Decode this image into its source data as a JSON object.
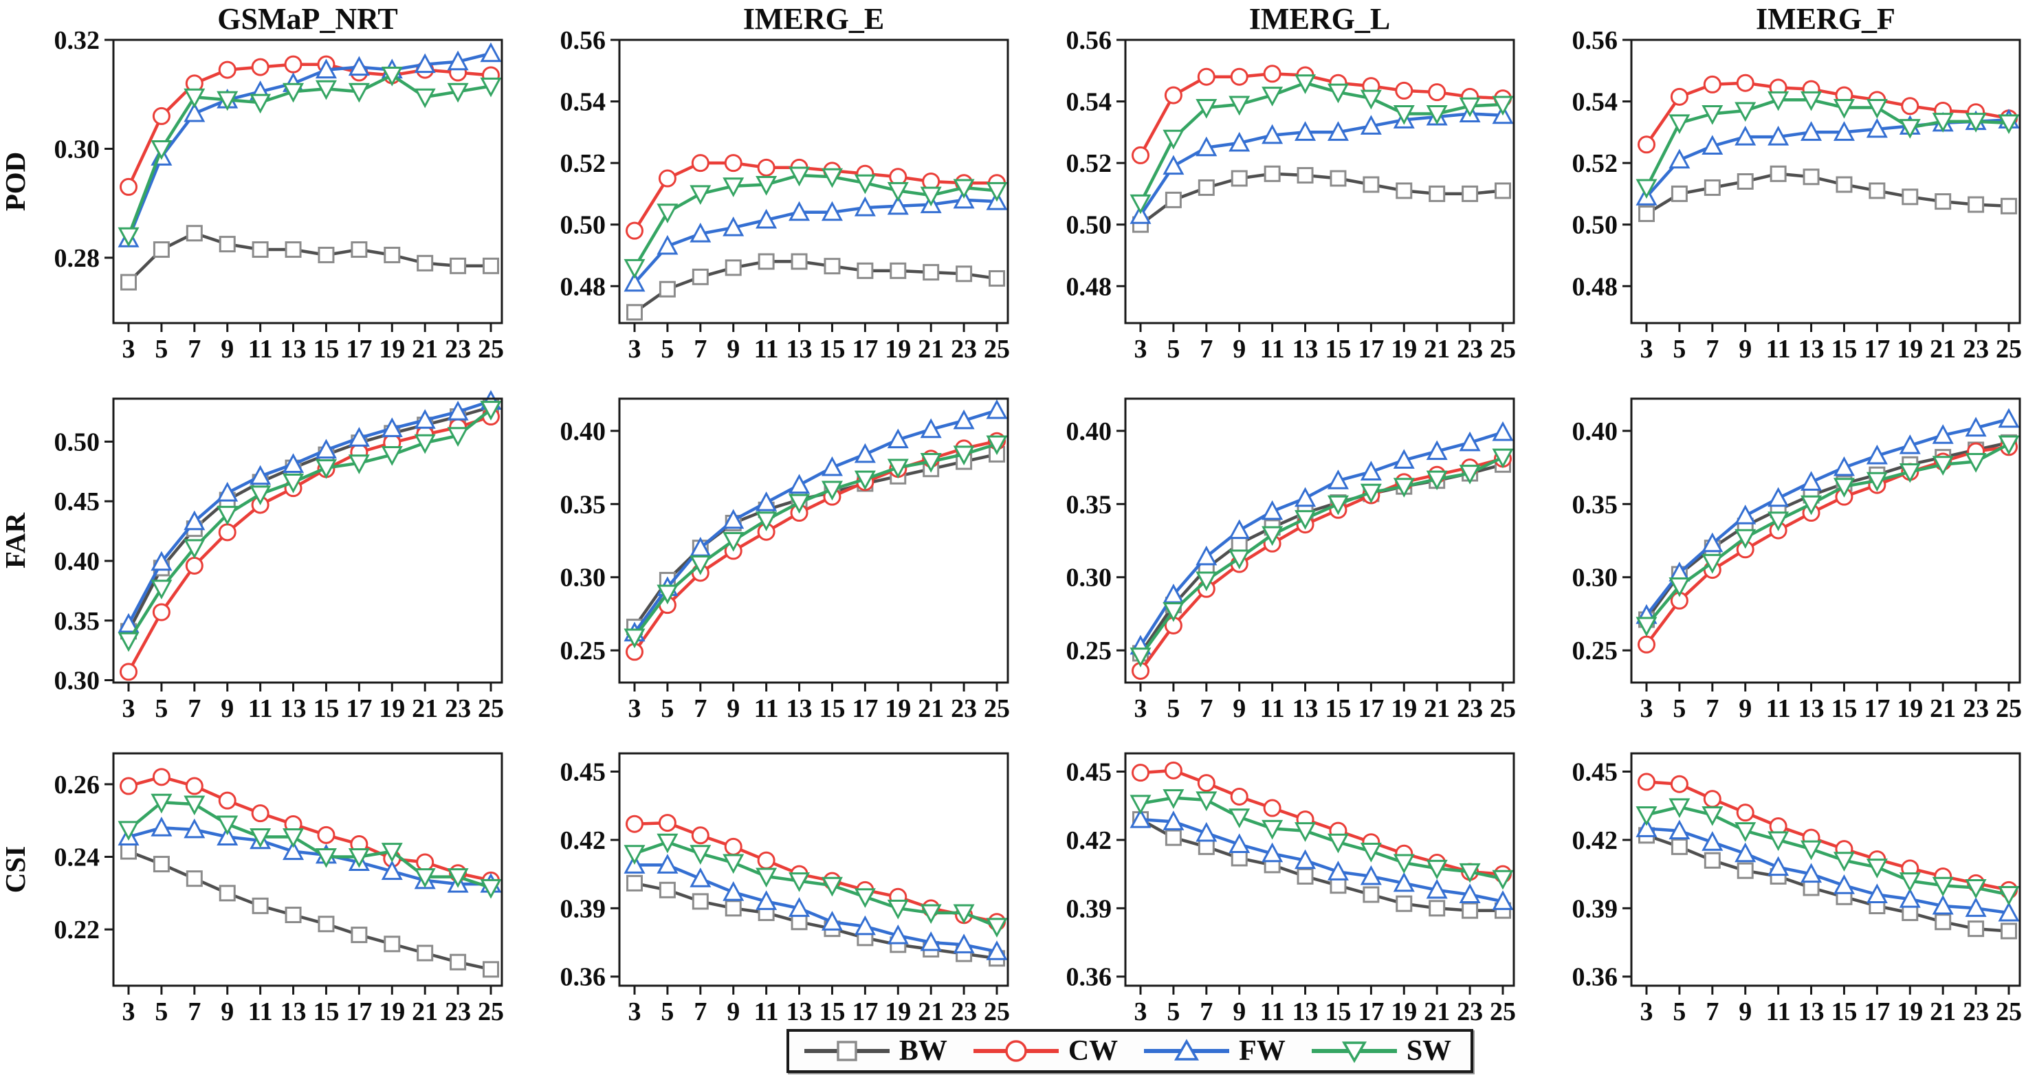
{
  "figure_background": "#ffffff",
  "columns": [
    "GSMaP_NRT",
    "IMERG_E",
    "IMERG_L",
    "IMERG_F"
  ],
  "row_metrics": [
    "POD",
    "FAR",
    "CSI"
  ],
  "x": [
    3,
    5,
    7,
    9,
    11,
    13,
    15,
    17,
    19,
    21,
    23,
    25
  ],
  "series_order": [
    "BW",
    "CW",
    "FW",
    "SW"
  ],
  "colors": {
    "BW": "#4f4f4f",
    "CW": "#ea3e38",
    "FW": "#346fd2",
    "SW": "#35a563",
    "BW_marker_stroke": "#8b8b8b",
    "axis": "#1a1a1a",
    "marker_fill": "#ffffff"
  },
  "legend": {
    "items": [
      {
        "label": "BW",
        "marker": "square"
      },
      {
        "label": "CW",
        "marker": "circle"
      },
      {
        "label": "FW",
        "marker": "triangle-up"
      },
      {
        "label": "SW",
        "marker": "triangle-down"
      }
    ]
  },
  "chart_data": [
    {
      "type": "line",
      "row": "POD",
      "column": "GSMaP_NRT",
      "xlabel": "",
      "ylabel": "POD",
      "grid": false,
      "x": [
        3,
        5,
        7,
        9,
        11,
        13,
        15,
        17,
        19,
        21,
        23,
        25
      ],
      "ylim": [
        0.268,
        0.32
      ],
      "yticks": [
        0.28,
        0.3,
        0.32
      ],
      "series": {
        "BW": [
          0.2755,
          0.2815,
          0.2845,
          0.2825,
          0.2815,
          0.2815,
          0.2805,
          0.2815,
          0.2805,
          0.279,
          0.2785,
          0.2785
        ],
        "CW": [
          0.293,
          0.306,
          0.312,
          0.3145,
          0.315,
          0.3155,
          0.3155,
          0.314,
          0.3135,
          0.3145,
          0.314,
          0.3135
        ],
        "FW": [
          0.2835,
          0.2985,
          0.3065,
          0.309,
          0.3105,
          0.312,
          0.3145,
          0.315,
          0.3145,
          0.3155,
          0.316,
          0.3175
        ],
        "SW": [
          0.284,
          0.3,
          0.3095,
          0.309,
          0.3085,
          0.3105,
          0.311,
          0.3105,
          0.3135,
          0.3095,
          0.3105,
          0.3115
        ]
      }
    },
    {
      "type": "line",
      "row": "POD",
      "column": "IMERG_E",
      "xlabel": "",
      "ylabel": "",
      "grid": false,
      "x": [
        3,
        5,
        7,
        9,
        11,
        13,
        15,
        17,
        19,
        21,
        23,
        25
      ],
      "ylim": [
        0.468,
        0.56
      ],
      "yticks": [
        0.48,
        0.5,
        0.52,
        0.54,
        0.56
      ],
      "series": {
        "BW": [
          0.4715,
          0.479,
          0.483,
          0.486,
          0.488,
          0.488,
          0.4865,
          0.485,
          0.485,
          0.4845,
          0.484,
          0.4825
        ],
        "CW": [
          0.498,
          0.515,
          0.52,
          0.52,
          0.5185,
          0.5185,
          0.5175,
          0.5165,
          0.5155,
          0.514,
          0.5135,
          0.5135
        ],
        "FW": [
          0.481,
          0.493,
          0.497,
          0.499,
          0.5015,
          0.504,
          0.504,
          0.5055,
          0.506,
          0.5065,
          0.508,
          0.5075
        ],
        "SW": [
          0.486,
          0.504,
          0.51,
          0.5125,
          0.513,
          0.516,
          0.5155,
          0.5135,
          0.511,
          0.5095,
          0.512,
          0.511
        ]
      }
    },
    {
      "type": "line",
      "row": "POD",
      "column": "IMERG_L",
      "xlabel": "",
      "ylabel": "",
      "grid": false,
      "x": [
        3,
        5,
        7,
        9,
        11,
        13,
        15,
        17,
        19,
        21,
        23,
        25
      ],
      "ylim": [
        0.468,
        0.56
      ],
      "yticks": [
        0.48,
        0.5,
        0.52,
        0.54,
        0.56
      ],
      "series": {
        "BW": [
          0.5,
          0.508,
          0.512,
          0.515,
          0.5165,
          0.516,
          0.515,
          0.513,
          0.511,
          0.51,
          0.51,
          0.511
        ],
        "CW": [
          0.5225,
          0.542,
          0.548,
          0.548,
          0.549,
          0.5485,
          0.546,
          0.545,
          0.5435,
          0.543,
          0.5415,
          0.541
        ],
        "FW": [
          0.503,
          0.519,
          0.525,
          0.5265,
          0.529,
          0.53,
          0.53,
          0.532,
          0.534,
          0.535,
          0.536,
          0.5355
        ],
        "SW": [
          0.507,
          0.528,
          0.538,
          0.539,
          0.542,
          0.546,
          0.543,
          0.541,
          0.536,
          0.536,
          0.5385,
          0.539
        ]
      }
    },
    {
      "type": "line",
      "row": "POD",
      "column": "IMERG_F",
      "xlabel": "",
      "ylabel": "",
      "grid": false,
      "x": [
        3,
        5,
        7,
        9,
        11,
        13,
        15,
        17,
        19,
        21,
        23,
        25
      ],
      "ylim": [
        0.468,
        0.56
      ],
      "yticks": [
        0.48,
        0.5,
        0.52,
        0.54,
        0.56
      ],
      "series": {
        "BW": [
          0.5035,
          0.51,
          0.512,
          0.514,
          0.5165,
          0.5155,
          0.513,
          0.511,
          0.509,
          0.5075,
          0.5065,
          0.506
        ],
        "CW": [
          0.526,
          0.5415,
          0.5455,
          0.546,
          0.5445,
          0.544,
          0.542,
          0.5405,
          0.5385,
          0.537,
          0.5365,
          0.5345
        ],
        "FW": [
          0.509,
          0.521,
          0.5255,
          0.5285,
          0.5285,
          0.53,
          0.53,
          0.531,
          0.532,
          0.533,
          0.5335,
          0.534
        ],
        "SW": [
          0.512,
          0.533,
          0.536,
          0.537,
          0.5405,
          0.5405,
          0.538,
          0.538,
          0.5315,
          0.5335,
          0.5335,
          0.533
        ]
      }
    },
    {
      "type": "line",
      "row": "FAR",
      "column": "GSMaP_NRT",
      "xlabel": "",
      "ylabel": "FAR",
      "grid": false,
      "x": [
        3,
        5,
        7,
        9,
        11,
        13,
        15,
        17,
        19,
        21,
        23,
        25
      ],
      "ylim": [
        0.298,
        0.536
      ],
      "yticks": [
        0.3,
        0.35,
        0.4,
        0.45,
        0.5
      ],
      "series": {
        "BW": [
          0.341,
          0.394,
          0.427,
          0.451,
          0.466,
          0.478,
          0.489,
          0.499,
          0.507,
          0.514,
          0.521,
          0.529
        ],
        "CW": [
          0.307,
          0.357,
          0.396,
          0.424,
          0.447,
          0.461,
          0.477,
          0.491,
          0.499,
          0.506,
          0.512,
          0.521
        ],
        "FW": [
          0.347,
          0.399,
          0.433,
          0.457,
          0.471,
          0.481,
          0.493,
          0.503,
          0.511,
          0.518,
          0.525,
          0.534
        ],
        "SW": [
          0.333,
          0.377,
          0.411,
          0.439,
          0.456,
          0.466,
          0.478,
          0.482,
          0.489,
          0.499,
          0.505,
          0.527
        ]
      }
    },
    {
      "type": "line",
      "row": "FAR",
      "column": "IMERG_E",
      "xlabel": "",
      "ylabel": "",
      "grid": false,
      "x": [
        3,
        5,
        7,
        9,
        11,
        13,
        15,
        17,
        19,
        21,
        23,
        25
      ],
      "ylim": [
        0.228,
        0.422
      ],
      "yticks": [
        0.25,
        0.3,
        0.35,
        0.4
      ],
      "series": {
        "BW": [
          0.266,
          0.298,
          0.32,
          0.337,
          0.346,
          0.353,
          0.358,
          0.364,
          0.369,
          0.374,
          0.379,
          0.384
        ],
        "CW": [
          0.249,
          0.281,
          0.303,
          0.318,
          0.331,
          0.344,
          0.355,
          0.365,
          0.374,
          0.381,
          0.388,
          0.393
        ],
        "FW": [
          0.262,
          0.293,
          0.32,
          0.339,
          0.351,
          0.363,
          0.375,
          0.384,
          0.394,
          0.401,
          0.407,
          0.414
        ],
        "SW": [
          0.259,
          0.289,
          0.309,
          0.325,
          0.339,
          0.351,
          0.36,
          0.367,
          0.375,
          0.379,
          0.384,
          0.391
        ]
      }
    },
    {
      "type": "line",
      "row": "FAR",
      "column": "IMERG_L",
      "xlabel": "",
      "ylabel": "",
      "grid": false,
      "x": [
        3,
        5,
        7,
        9,
        11,
        13,
        15,
        17,
        19,
        21,
        23,
        25
      ],
      "ylim": [
        0.228,
        0.422
      ],
      "yticks": [
        0.25,
        0.3,
        0.35,
        0.4
      ],
      "series": {
        "BW": [
          0.248,
          0.281,
          0.306,
          0.323,
          0.334,
          0.344,
          0.351,
          0.357,
          0.362,
          0.366,
          0.371,
          0.377
        ],
        "CW": [
          0.236,
          0.267,
          0.292,
          0.309,
          0.323,
          0.336,
          0.346,
          0.356,
          0.365,
          0.37,
          0.375,
          0.381
        ],
        "FW": [
          0.253,
          0.288,
          0.314,
          0.332,
          0.345,
          0.354,
          0.366,
          0.372,
          0.38,
          0.386,
          0.392,
          0.399
        ],
        "SW": [
          0.246,
          0.277,
          0.298,
          0.313,
          0.329,
          0.34,
          0.35,
          0.358,
          0.362,
          0.367,
          0.371,
          0.382
        ]
      }
    },
    {
      "type": "line",
      "row": "FAR",
      "column": "IMERG_F",
      "xlabel": "",
      "ylabel": "",
      "grid": false,
      "x": [
        3,
        5,
        7,
        9,
        11,
        13,
        15,
        17,
        19,
        21,
        23,
        25
      ],
      "ylim": [
        0.228,
        0.422
      ],
      "yticks": [
        0.25,
        0.3,
        0.35,
        0.4
      ],
      "series": {
        "BW": [
          0.271,
          0.302,
          0.32,
          0.335,
          0.346,
          0.356,
          0.364,
          0.37,
          0.377,
          0.382,
          0.387,
          0.392
        ],
        "CW": [
          0.254,
          0.284,
          0.305,
          0.319,
          0.332,
          0.344,
          0.355,
          0.363,
          0.372,
          0.379,
          0.386,
          0.389
        ],
        "FW": [
          0.274,
          0.303,
          0.323,
          0.342,
          0.354,
          0.365,
          0.375,
          0.383,
          0.39,
          0.397,
          0.402,
          0.408
        ],
        "SW": [
          0.267,
          0.294,
          0.31,
          0.327,
          0.339,
          0.35,
          0.362,
          0.366,
          0.372,
          0.377,
          0.379,
          0.391
        ]
      }
    },
    {
      "type": "line",
      "row": "CSI",
      "column": "GSMaP_NRT",
      "xlabel": "",
      "ylabel": "CSI",
      "grid": false,
      "x": [
        3,
        5,
        7,
        9,
        11,
        13,
        15,
        17,
        19,
        21,
        23,
        25
      ],
      "ylim": [
        0.2045,
        0.2685
      ],
      "yticks": [
        0.22,
        0.24,
        0.26
      ],
      "series": {
        "BW": [
          0.2415,
          0.238,
          0.234,
          0.23,
          0.2265,
          0.224,
          0.2215,
          0.2185,
          0.216,
          0.2135,
          0.211,
          0.209
        ],
        "CW": [
          0.2595,
          0.262,
          0.2595,
          0.2555,
          0.252,
          0.249,
          0.246,
          0.2435,
          0.2395,
          0.2385,
          0.2355,
          0.2335
        ],
        "FW": [
          0.2455,
          0.248,
          0.2475,
          0.2455,
          0.2445,
          0.2415,
          0.2405,
          0.2385,
          0.236,
          0.2335,
          0.2325,
          0.2325
        ],
        "SW": [
          0.2475,
          0.255,
          0.2545,
          0.249,
          0.2455,
          0.2455,
          0.24,
          0.24,
          0.2415,
          0.2345,
          0.2345,
          0.2315
        ]
      }
    },
    {
      "type": "line",
      "row": "CSI",
      "column": "IMERG_E",
      "xlabel": "",
      "ylabel": "",
      "grid": false,
      "x": [
        3,
        5,
        7,
        9,
        11,
        13,
        15,
        17,
        19,
        21,
        23,
        25
      ],
      "ylim": [
        0.356,
        0.458
      ],
      "yticks": [
        0.36,
        0.39,
        0.42,
        0.45
      ],
      "series": {
        "BW": [
          0.401,
          0.398,
          0.393,
          0.39,
          0.388,
          0.384,
          0.381,
          0.377,
          0.374,
          0.372,
          0.37,
          0.368
        ],
        "CW": [
          0.427,
          0.4275,
          0.422,
          0.417,
          0.411,
          0.405,
          0.402,
          0.398,
          0.395,
          0.39,
          0.387,
          0.384
        ],
        "FW": [
          0.409,
          0.409,
          0.403,
          0.397,
          0.393,
          0.39,
          0.384,
          0.382,
          0.378,
          0.375,
          0.374,
          0.371
        ],
        "SW": [
          0.414,
          0.419,
          0.414,
          0.41,
          0.404,
          0.402,
          0.4,
          0.395,
          0.39,
          0.388,
          0.388,
          0.382
        ]
      }
    },
    {
      "type": "line",
      "row": "CSI",
      "column": "IMERG_L",
      "xlabel": "",
      "ylabel": "",
      "grid": false,
      "x": [
        3,
        5,
        7,
        9,
        11,
        13,
        15,
        17,
        19,
        21,
        23,
        25
      ],
      "ylim": [
        0.356,
        0.458
      ],
      "yticks": [
        0.36,
        0.39,
        0.42,
        0.45
      ],
      "series": {
        "BW": [
          0.429,
          0.421,
          0.417,
          0.412,
          0.409,
          0.404,
          0.4,
          0.396,
          0.392,
          0.39,
          0.389,
          0.389
        ],
        "CW": [
          0.4495,
          0.4505,
          0.445,
          0.439,
          0.434,
          0.429,
          0.424,
          0.419,
          0.414,
          0.41,
          0.406,
          0.405
        ],
        "FW": [
          0.429,
          0.428,
          0.423,
          0.418,
          0.414,
          0.411,
          0.406,
          0.404,
          0.401,
          0.398,
          0.396,
          0.393
        ],
        "SW": [
          0.436,
          0.4385,
          0.4375,
          0.43,
          0.425,
          0.424,
          0.419,
          0.415,
          0.41,
          0.4075,
          0.406,
          0.403
        ]
      }
    },
    {
      "type": "line",
      "row": "CSI",
      "column": "IMERG_F",
      "xlabel": "",
      "ylabel": "",
      "grid": false,
      "x": [
        3,
        5,
        7,
        9,
        11,
        13,
        15,
        17,
        19,
        21,
        23,
        25
      ],
      "ylim": [
        0.356,
        0.458
      ],
      "yticks": [
        0.36,
        0.39,
        0.42,
        0.45
      ],
      "series": {
        "BW": [
          0.422,
          0.417,
          0.411,
          0.4065,
          0.404,
          0.399,
          0.395,
          0.391,
          0.388,
          0.384,
          0.381,
          0.38
        ],
        "CW": [
          0.4455,
          0.4445,
          0.438,
          0.432,
          0.426,
          0.421,
          0.416,
          0.4115,
          0.4075,
          0.404,
          0.401,
          0.398
        ],
        "FW": [
          0.425,
          0.424,
          0.419,
          0.414,
          0.408,
          0.405,
          0.4,
          0.396,
          0.394,
          0.391,
          0.39,
          0.388
        ],
        "SW": [
          0.431,
          0.4345,
          0.431,
          0.424,
          0.42,
          0.416,
          0.411,
          0.408,
          0.402,
          0.4,
          0.399,
          0.396
        ]
      }
    }
  ]
}
